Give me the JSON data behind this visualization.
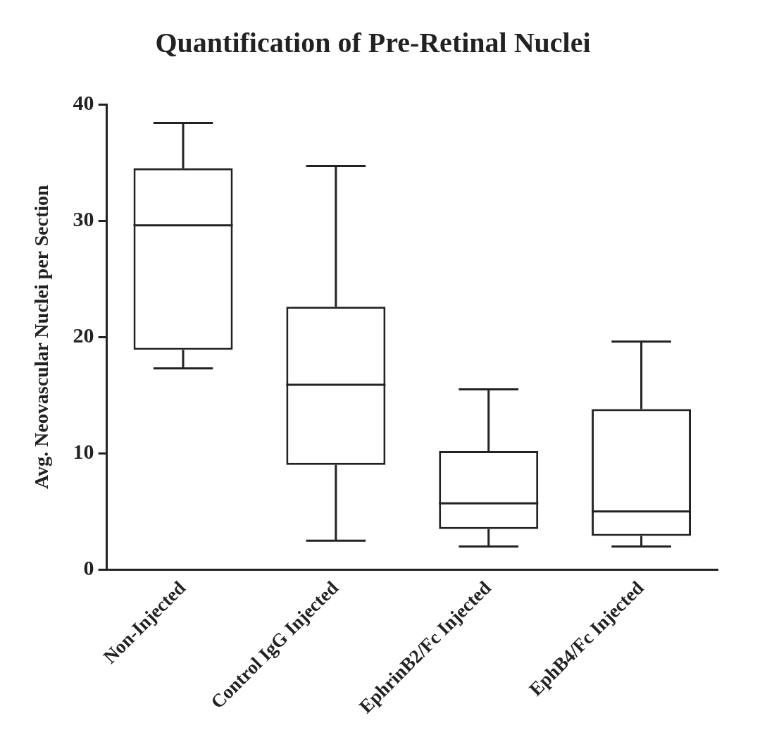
{
  "chart_data": {
    "type": "box",
    "title": "Quantification of Pre-Retinal Nuclei",
    "ylabel": "Avg. Neovascular Nuclei per Section",
    "categories": [
      "Non-Injected",
      "Control IgG Injected",
      "EphrinB2/Fc Injected",
      "EphB4/Fc Injected"
    ],
    "boxes": [
      {
        "low": 17.3,
        "q1": 18.9,
        "median": 29.6,
        "q3": 34.5,
        "high": 38.4
      },
      {
        "low": 2.5,
        "q1": 9.0,
        "median": 15.9,
        "q3": 22.6,
        "high": 34.7
      },
      {
        "low": 2.0,
        "q1": 3.5,
        "median": 5.7,
        "q3": 10.2,
        "high": 15.5
      },
      {
        "low": 2.0,
        "q1": 2.9,
        "median": 5.0,
        "q3": 13.8,
        "high": 19.6
      }
    ],
    "ylim": [
      0,
      40
    ],
    "yticks": [
      0,
      10,
      20,
      30,
      40
    ],
    "grid": false
  }
}
